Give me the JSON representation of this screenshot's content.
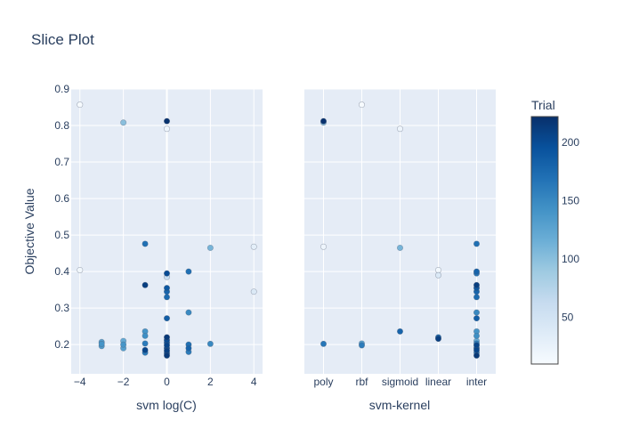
{
  "chart_data": {
    "type": "scatter",
    "title": "Slice Plot",
    "ylabel": "Objective Value",
    "ylim": [
      0.12,
      0.9
    ],
    "yticks": [
      "0.2",
      "0.3",
      "0.4",
      "0.5",
      "0.6",
      "0.7",
      "0.8",
      "0.9"
    ],
    "grid": true,
    "colorbar": {
      "title": "Trial",
      "min": 10,
      "max": 222,
      "ticks": [
        "50",
        "100",
        "150",
        "200"
      ],
      "colorscale": [
        "#f7fbff",
        "#deebf7",
        "#c6dbef",
        "#9ecae1",
        "#6baed6",
        "#4292c6",
        "#2171b5",
        "#08519c",
        "#08306b"
      ]
    },
    "panels": [
      {
        "xlabel": "svm log(C)",
        "xlim": [
          -4.4,
          4.4
        ],
        "xticks": [
          "−4",
          "−2",
          "0",
          "2",
          "4"
        ],
        "points": [
          {
            "x": -4,
            "y": 0.857,
            "trial": 10
          },
          {
            "x": -4,
            "y": 0.404,
            "trial": 15
          },
          {
            "x": -2,
            "y": 0.808,
            "trial": 100
          },
          {
            "x": 0,
            "y": 0.812,
            "trial": 220
          },
          {
            "x": 0,
            "y": 0.791,
            "trial": 20
          },
          {
            "x": 4,
            "y": 0.468,
            "trial": 30
          },
          {
            "x": 4,
            "y": 0.345,
            "trial": 40
          },
          {
            "x": 2,
            "y": 0.465,
            "trial": 110
          },
          {
            "x": -1,
            "y": 0.476,
            "trial": 170
          },
          {
            "x": -1,
            "y": 0.363,
            "trial": 210
          },
          {
            "x": 1,
            "y": 0.4,
            "trial": 170
          },
          {
            "x": 0,
            "y": 0.395,
            "trial": 200
          },
          {
            "x": 0,
            "y": 0.385,
            "trial": 60
          },
          {
            "x": 0,
            "y": 0.355,
            "trial": 190
          },
          {
            "x": 0,
            "y": 0.345,
            "trial": 180
          },
          {
            "x": 0,
            "y": 0.33,
            "trial": 175
          },
          {
            "x": 0,
            "y": 0.272,
            "trial": 185
          },
          {
            "x": 1,
            "y": 0.288,
            "trial": 150
          },
          {
            "x": -1,
            "y": 0.236,
            "trial": 140
          },
          {
            "x": -1,
            "y": 0.224,
            "trial": 145
          },
          {
            "x": -1,
            "y": 0.203,
            "trial": 160
          },
          {
            "x": -1,
            "y": 0.185,
            "trial": 205
          },
          {
            "x": -1,
            "y": 0.178,
            "trial": 160
          },
          {
            "x": -3,
            "y": 0.207,
            "trial": 130
          },
          {
            "x": -3,
            "y": 0.202,
            "trial": 140
          },
          {
            "x": -3,
            "y": 0.196,
            "trial": 135
          },
          {
            "x": -2,
            "y": 0.21,
            "trial": 120
          },
          {
            "x": -2,
            "y": 0.2,
            "trial": 140
          },
          {
            "x": -2,
            "y": 0.19,
            "trial": 130
          },
          {
            "x": 0,
            "y": 0.22,
            "trial": 215
          },
          {
            "x": 0,
            "y": 0.212,
            "trial": 200
          },
          {
            "x": 0,
            "y": 0.205,
            "trial": 190
          },
          {
            "x": 0,
            "y": 0.198,
            "trial": 205
          },
          {
            "x": 0,
            "y": 0.19,
            "trial": 200
          },
          {
            "x": 0,
            "y": 0.183,
            "trial": 210
          },
          {
            "x": 0,
            "y": 0.176,
            "trial": 195
          },
          {
            "x": 0,
            "y": 0.17,
            "trial": 215
          },
          {
            "x": 1,
            "y": 0.2,
            "trial": 170
          },
          {
            "x": 1,
            "y": 0.19,
            "trial": 180
          },
          {
            "x": 1,
            "y": 0.18,
            "trial": 160
          },
          {
            "x": 2,
            "y": 0.202,
            "trial": 150
          }
        ]
      },
      {
        "xlabel": "svm-kernel",
        "categories": [
          "poly",
          "rbf",
          "sigmoid",
          "linear",
          "inter"
        ],
        "points": [
          {
            "x": "poly",
            "y": 0.812,
            "trial": 220
          },
          {
            "x": "poly",
            "y": 0.808,
            "trial": 100
          },
          {
            "x": "poly",
            "y": 0.468,
            "trial": 20
          },
          {
            "x": "poly",
            "y": 0.202,
            "trial": 165
          },
          {
            "x": "rbf",
            "y": 0.857,
            "trial": 10
          },
          {
            "x": "rbf",
            "y": 0.203,
            "trial": 130
          },
          {
            "x": "rbf",
            "y": 0.198,
            "trial": 160
          },
          {
            "x": "sigmoid",
            "y": 0.791,
            "trial": 20
          },
          {
            "x": "sigmoid",
            "y": 0.465,
            "trial": 110
          },
          {
            "x": "sigmoid",
            "y": 0.236,
            "trial": 180
          },
          {
            "x": "linear",
            "y": 0.404,
            "trial": 15
          },
          {
            "x": "linear",
            "y": 0.39,
            "trial": 40
          },
          {
            "x": "linear",
            "y": 0.22,
            "trial": 175
          },
          {
            "x": "linear",
            "y": 0.216,
            "trial": 210
          },
          {
            "x": "inter",
            "y": 0.476,
            "trial": 170
          },
          {
            "x": "inter",
            "y": 0.4,
            "trial": 180
          },
          {
            "x": "inter",
            "y": 0.395,
            "trial": 165
          },
          {
            "x": "inter",
            "y": 0.363,
            "trial": 210
          },
          {
            "x": "inter",
            "y": 0.355,
            "trial": 190
          },
          {
            "x": "inter",
            "y": 0.345,
            "trial": 180
          },
          {
            "x": "inter",
            "y": 0.33,
            "trial": 175
          },
          {
            "x": "inter",
            "y": 0.288,
            "trial": 150
          },
          {
            "x": "inter",
            "y": 0.272,
            "trial": 185
          },
          {
            "x": "inter",
            "y": 0.236,
            "trial": 140
          },
          {
            "x": "inter",
            "y": 0.224,
            "trial": 145
          },
          {
            "x": "inter",
            "y": 0.21,
            "trial": 120
          },
          {
            "x": "inter",
            "y": 0.203,
            "trial": 160
          },
          {
            "x": "inter",
            "y": 0.198,
            "trial": 205
          },
          {
            "x": "inter",
            "y": 0.19,
            "trial": 200
          },
          {
            "x": "inter",
            "y": 0.185,
            "trial": 205
          },
          {
            "x": "inter",
            "y": 0.178,
            "trial": 160
          },
          {
            "x": "inter",
            "y": 0.17,
            "trial": 215
          }
        ]
      }
    ]
  }
}
